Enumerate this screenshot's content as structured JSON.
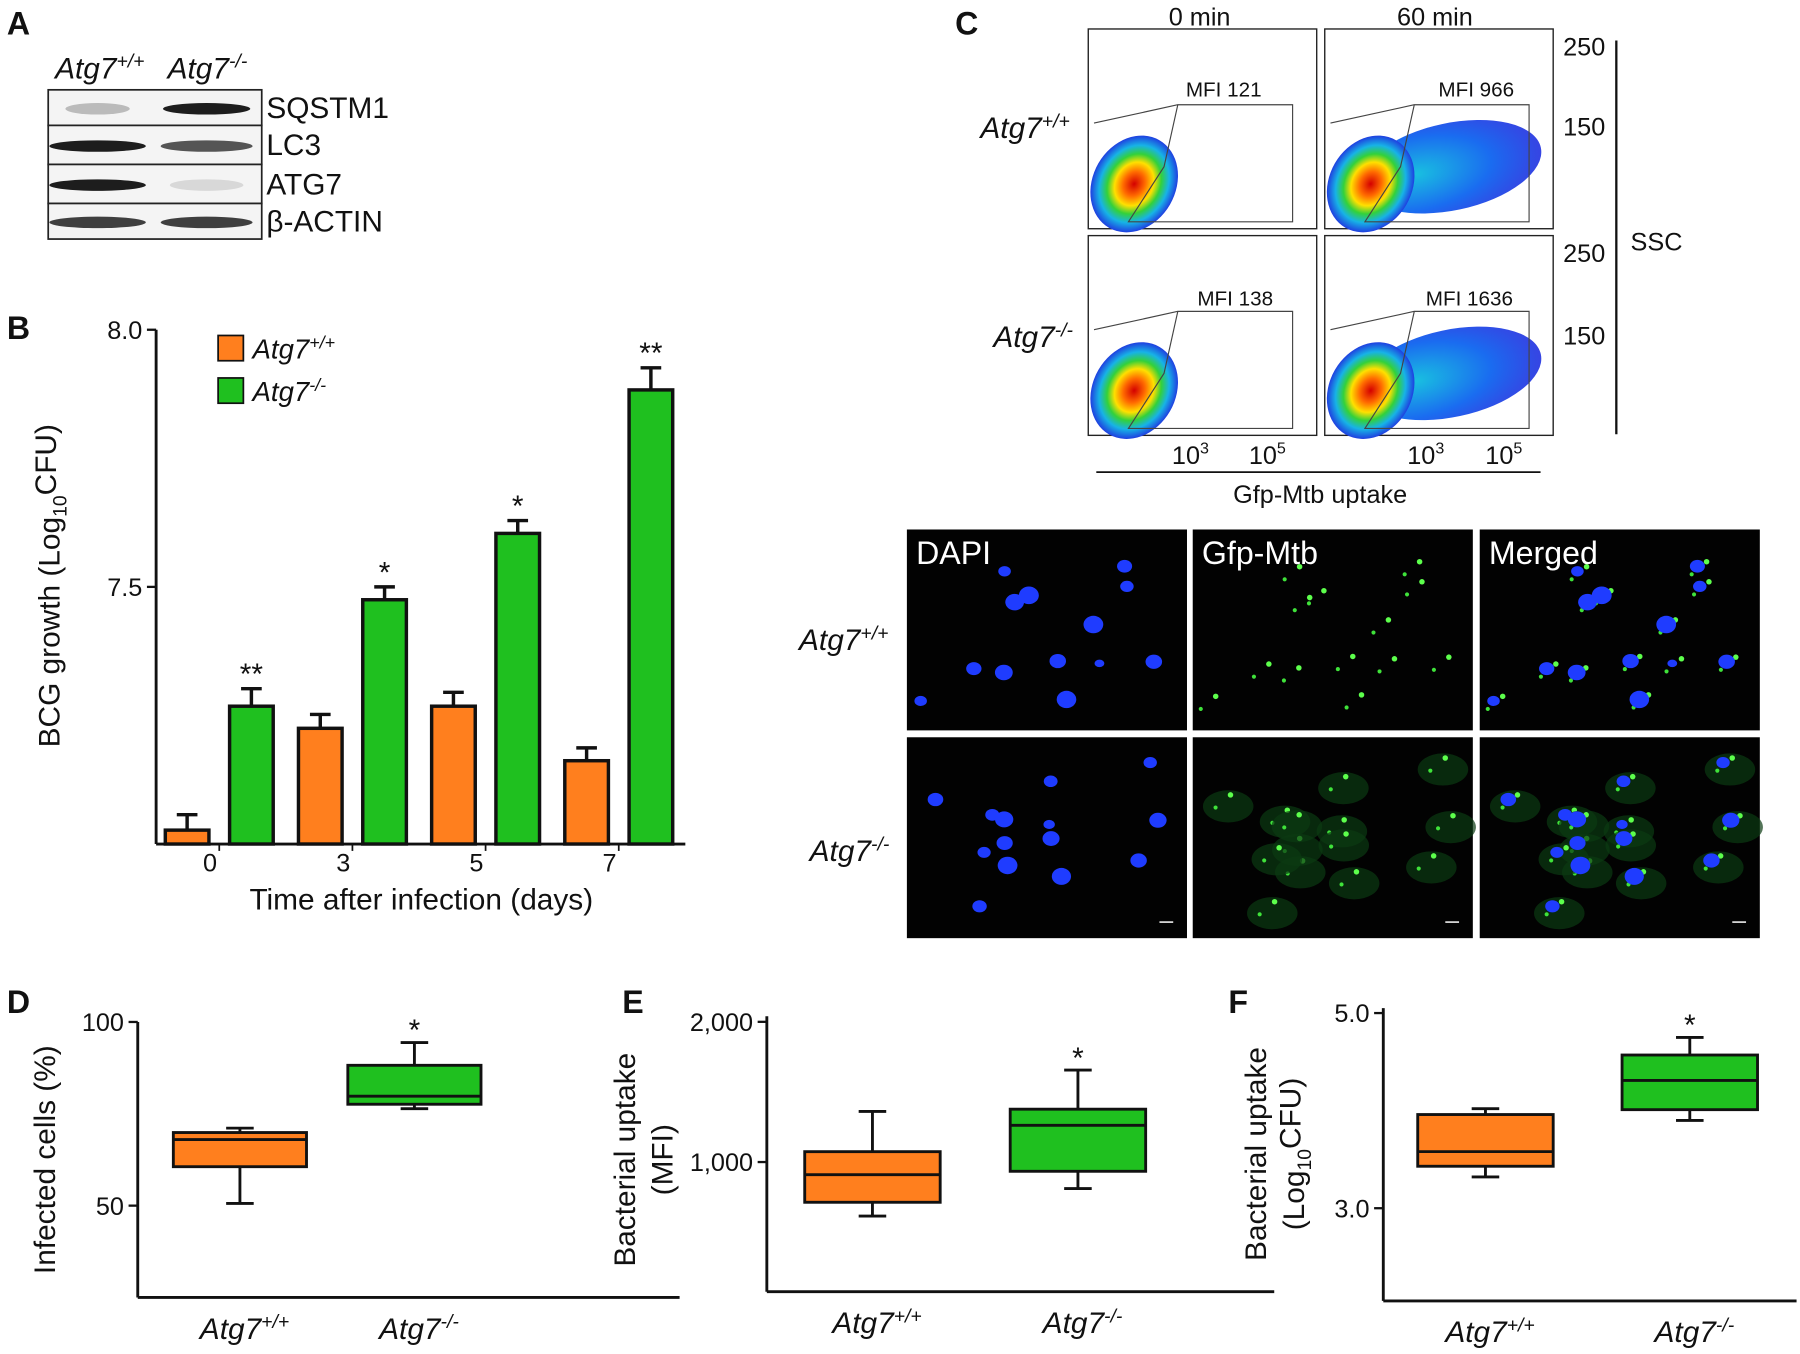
{
  "panel_letters": [
    "A",
    "B",
    "C",
    "D",
    "E",
    "F"
  ],
  "blot": {
    "columns": [
      "Atg7+/+",
      "Atg7-/-"
    ],
    "bands": [
      "SQSTM1",
      "LC3",
      "ATG7",
      "β-ACTIN"
    ]
  },
  "flow": {
    "columns": [
      "0 min",
      "60 min"
    ],
    "rows": [
      "Atg7+/+",
      "Atg7-/-"
    ],
    "mfi": [
      [
        "MFI 121",
        "MFI 966"
      ],
      [
        "MFI 138",
        "MFI 1636"
      ]
    ],
    "y_tick_labels": [
      250,
      150
    ],
    "ylabel": "SSC",
    "x_tick_labels": [
      {
        "base": "10",
        "exp": "3"
      },
      {
        "base": "10",
        "exp": "5"
      }
    ],
    "xlabel": "Gfp-Mtb uptake"
  },
  "microscopy": {
    "columns": [
      "DAPI",
      "Gfp-Mtb",
      "Merged"
    ],
    "rows": [
      "Atg7+/+",
      "Atg7-/-"
    ]
  },
  "chart_data": [
    {
      "type": "bar",
      "xlabel": "Time after infection (days)",
      "ylabel": "BCG growth (Log10CFU)",
      "categories": [
        "0",
        "3",
        "5",
        "7"
      ],
      "series": [
        {
          "name": "Atg7+/+",
          "color": "#ff7f1e",
          "values": [
            7.027,
            7.225,
            7.268,
            7.162
          ],
          "errors": [
            0.03,
            0.027,
            0.027,
            0.025
          ]
        },
        {
          "name": "Atg7-/-",
          "color": "#1fc01f",
          "values": [
            7.268,
            7.475,
            7.604,
            7.883
          ],
          "errors": [
            0.034,
            0.025,
            0.025,
            0.043
          ],
          "significance": [
            "**",
            "*",
            "*",
            "**"
          ]
        }
      ],
      "ylim": [
        7.0,
        8.0
      ],
      "yticks": [
        7.5,
        {
          "value": 8,
          "label": "8.0"
        }
      ],
      "legend": "upper left"
    },
    {
      "type": "box",
      "ylabel": "Infected cells (%)",
      "categories": [
        "Atg7+/+",
        "Atg7-/-"
      ],
      "boxes": [
        {
          "color": "#ff7f1e",
          "whislo": 50.6,
          "q1": 60.6,
          "med": 68.0,
          "q3": 69.9,
          "whishi": 71.1
        },
        {
          "color": "#1fc01f",
          "whislo": 76.4,
          "q1": 77.6,
          "med": 79.8,
          "q3": 88.2,
          "whishi": 94.4
        }
      ],
      "significance": [
        null,
        "*"
      ],
      "ylim": [
        25,
        100
      ],
      "yticks": [
        50,
        100
      ]
    },
    {
      "type": "box",
      "ylabel": [
        "Bacterial uptake",
        "(MFI)"
      ],
      "categories": [
        "Atg7+/+",
        "Atg7-/-"
      ],
      "boxes": [
        {
          "color": "#ff7f1e",
          "whislo": 615,
          "q1": 713,
          "med": 910,
          "q3": 1074,
          "whishi": 1361
        },
        {
          "color": "#1fc01f",
          "whislo": 811,
          "q1": 934,
          "med": 1262,
          "q3": 1377,
          "whishi": 1656
        }
      ],
      "significance": [
        null,
        "*"
      ],
      "ylim": [
        75,
        2040
      ],
      "yticks": [
        {
          "value": 1000,
          "label": "1,000"
        },
        {
          "value": 2000,
          "label": "2,000"
        }
      ]
    },
    {
      "type": "box",
      "ylabel": [
        "Bacterial uptake",
        "(Log10CFU)"
      ],
      "categories": [
        "Atg7+/+",
        "Atg7-/-"
      ],
      "boxes": [
        {
          "color": "#ff7f1e",
          "whislo": 3.32,
          "q1": 3.43,
          "med": 3.58,
          "q3": 3.96,
          "whishi": 4.02
        },
        {
          "color": "#1fc01f",
          "whislo": 3.9,
          "q1": 4.01,
          "med": 4.31,
          "q3": 4.57,
          "whishi": 4.75
        }
      ],
      "significance": [
        null,
        "*"
      ],
      "ylim": [
        2.05,
        5.05
      ],
      "yticks": [
        {
          "value": 3,
          "label": "3.0"
        },
        {
          "value": 5,
          "label": "5.0"
        }
      ]
    }
  ]
}
